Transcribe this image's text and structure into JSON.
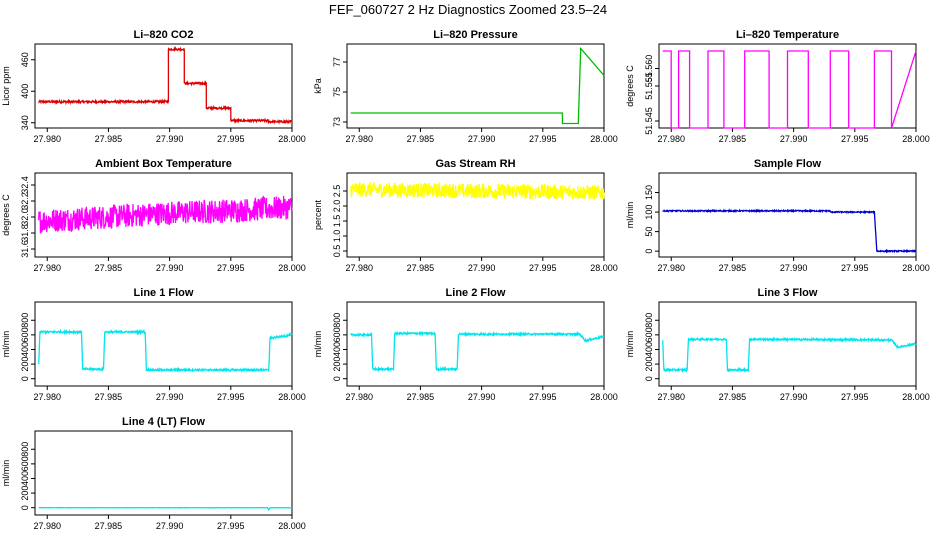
{
  "page": {
    "title": "FEF_060727  2 Hz Diagnostics Zoomed 23.5–24"
  },
  "chart_data": [
    {
      "type": "line",
      "title": "Li–820 CO2",
      "ylabel": "Licor ppm",
      "color": "#dd0000",
      "xlim": [
        27.979,
        28.0
      ],
      "ylim": [
        330,
        490
      ],
      "x_ticks": [
        27.98,
        27.985,
        27.99,
        27.995,
        28.0
      ],
      "x_tick_labels": [
        "27.980",
        "27.985",
        "27.990",
        "27.995",
        "28.000"
      ],
      "y_ticks": [
        340,
        400,
        460
      ],
      "y_tick_labels": [
        "340",
        "400",
        "460"
      ],
      "noise": 2,
      "series": [
        {
          "x": [
            27.9793,
            27.9899,
            27.9899,
            27.9912,
            27.9912,
            27.993,
            27.993,
            27.995,
            27.995,
            27.9981,
            27.9981,
            28.0
          ],
          "values": [
            380,
            380,
            480,
            480,
            415,
            415,
            368,
            368,
            344,
            344,
            342,
            342
          ]
        }
      ]
    },
    {
      "type": "line",
      "title": "Li–820 Pressure",
      "ylabel": "kPa",
      "color": "#00bb00",
      "xlim": [
        27.979,
        28.0
      ],
      "ylim": [
        72.6,
        78.2
      ],
      "x_ticks": [
        27.98,
        27.985,
        27.99,
        27.995,
        28.0
      ],
      "x_tick_labels": [
        "27.980",
        "27.985",
        "27.990",
        "27.995",
        "28.000"
      ],
      "y_ticks": [
        73,
        75,
        77
      ],
      "y_tick_labels": [
        "73",
        "75",
        "77"
      ],
      "noise": 0,
      "series": [
        {
          "x": [
            27.9793,
            27.9966,
            27.9966,
            27.9979,
            27.9981,
            28.0
          ],
          "values": [
            73.6,
            73.6,
            72.9,
            72.9,
            77.9,
            76.1
          ]
        }
      ]
    },
    {
      "type": "line",
      "title": "Li–820 Temperature",
      "ylabel": "degrees C",
      "color": "#ff00ff",
      "xlim": [
        27.979,
        28.0
      ],
      "ylim": [
        51.543,
        51.567
      ],
      "x_ticks": [
        27.98,
        27.985,
        27.99,
        27.995,
        28.0
      ],
      "x_tick_labels": [
        "27.980",
        "27.985",
        "27.990",
        "27.995",
        "28.000"
      ],
      "y_ticks": [
        51.545,
        51.555,
        51.56
      ],
      "y_tick_labels": [
        "51.545",
        "51.555",
        "51.560"
      ],
      "noise": 0,
      "series": [
        {
          "x": [
            27.9793,
            27.98,
            27.98,
            27.9806,
            27.9806,
            27.9815,
            27.9815,
            27.983,
            27.983,
            27.9843,
            27.9843,
            27.986,
            27.986,
            27.988,
            27.988,
            27.9895,
            27.9895,
            27.9912,
            27.9912,
            27.993,
            27.993,
            27.9945,
            27.9945,
            27.9966,
            27.9966,
            27.998,
            27.998,
            28.0
          ],
          "values": [
            51.565,
            51.565,
            51.543,
            51.543,
            51.565,
            51.565,
            51.543,
            51.543,
            51.565,
            51.565,
            51.543,
            51.543,
            51.565,
            51.565,
            51.543,
            51.543,
            51.565,
            51.565,
            51.543,
            51.543,
            51.565,
            51.565,
            51.543,
            51.543,
            51.565,
            51.565,
            51.543,
            51.565
          ]
        }
      ]
    },
    {
      "type": "line",
      "title": "Ambient Box Temperature",
      "ylabel": "degrees C",
      "color": "#ff00ff",
      "xlim": [
        27.979,
        28.0
      ],
      "ylim": [
        31.5,
        32.55
      ],
      "x_ticks": [
        27.98,
        27.985,
        27.99,
        27.995,
        28.0
      ],
      "x_tick_labels": [
        "27.980",
        "27.985",
        "27.990",
        "27.995",
        "28.000"
      ],
      "y_ticks": [
        31.6,
        31.8,
        32.0,
        32.2,
        32.4
      ],
      "y_tick_labels": [
        "31.6",
        "31.8",
        "32.0",
        "32.2",
        "32.4"
      ],
      "noise": 0.15,
      "series": [
        {
          "x": [
            27.9793,
            27.985,
            27.99,
            27.995,
            28.0
          ],
          "values": [
            31.95,
            32.0,
            32.05,
            32.08,
            32.12
          ]
        }
      ]
    },
    {
      "type": "line",
      "title": "Gas Stream RH",
      "ylabel": "percent",
      "color": "#ffff00",
      "xlim": [
        27.979,
        28.0
      ],
      "ylim": [
        0.3,
        3.1
      ],
      "x_ticks": [
        27.98,
        27.985,
        27.99,
        27.995,
        28.0
      ],
      "x_tick_labels": [
        "27.980",
        "27.985",
        "27.990",
        "27.995",
        "28.000"
      ],
      "y_ticks": [
        0.5,
        1.0,
        1.5,
        2.0,
        2.5
      ],
      "y_tick_labels": [
        "0.5",
        "1.0",
        "1.5",
        "2.0",
        "2.5"
      ],
      "noise": 0.25,
      "series": [
        {
          "x": [
            27.9793,
            27.99,
            28.0
          ],
          "values": [
            2.55,
            2.5,
            2.45
          ]
        }
      ]
    },
    {
      "type": "line",
      "title": "Sample Flow",
      "ylabel": "ml/min",
      "color": "#0000cc",
      "xlim": [
        27.979,
        28.0
      ],
      "ylim": [
        -15,
        200
      ],
      "x_ticks": [
        27.98,
        27.985,
        27.99,
        27.995,
        28.0
      ],
      "x_tick_labels": [
        "27.980",
        "27.985",
        "27.990",
        "27.995",
        "28.000"
      ],
      "y_ticks": [
        0,
        50,
        100,
        150
      ],
      "y_tick_labels": [
        "0",
        "50",
        "100",
        "150"
      ],
      "noise": 1.5,
      "series": [
        {
          "x": [
            27.9793,
            27.993,
            27.993,
            27.9966,
            27.9968,
            28.0
          ],
          "values": [
            103,
            103,
            100,
            100,
            0,
            0
          ]
        }
      ]
    },
    {
      "type": "line",
      "title": "Line 1 Flow",
      "ylabel": "ml/min",
      "color": "#00e5ee",
      "xlim": [
        27.979,
        28.0
      ],
      "ylim": [
        -100,
        1050
      ],
      "x_ticks": [
        27.98,
        27.985,
        27.99,
        27.995,
        28.0
      ],
      "x_tick_labels": [
        "27.980",
        "27.985",
        "27.990",
        "27.995",
        "28.000"
      ],
      "y_ticks": [
        0,
        200,
        400,
        600,
        800
      ],
      "y_tick_labels": [
        "0",
        "200",
        "400",
        "600",
        "800"
      ],
      "noise": 12,
      "series": [
        {
          "x": [
            27.9793,
            27.9794,
            27.9828,
            27.9829,
            27.9846,
            27.9847,
            27.988,
            27.9881,
            27.9981,
            27.9982,
            27.9985,
            28.0
          ],
          "values": [
            200,
            640,
            640,
            130,
            130,
            640,
            640,
            120,
            120,
            560,
            560,
            600
          ]
        }
      ]
    },
    {
      "type": "line",
      "title": "Line 2 Flow",
      "ylabel": "ml/min",
      "color": "#00e5ee",
      "xlim": [
        27.979,
        28.0
      ],
      "ylim": [
        -100,
        1050
      ],
      "x_ticks": [
        27.98,
        27.985,
        27.99,
        27.995,
        28.0
      ],
      "x_tick_labels": [
        "27.980",
        "27.985",
        "27.990",
        "27.995",
        "28.000"
      ],
      "y_ticks": [
        0,
        200,
        400,
        600,
        800
      ],
      "y_tick_labels": [
        "0",
        "200",
        "400",
        "600",
        "800"
      ],
      "noise": 12,
      "series": [
        {
          "x": [
            27.9793,
            27.981,
            27.9811,
            27.9828,
            27.9829,
            27.9862,
            27.9863,
            27.988,
            27.9881,
            27.998,
            27.9985,
            28.0
          ],
          "values": [
            600,
            600,
            130,
            130,
            620,
            620,
            130,
            130,
            610,
            610,
            520,
            580
          ]
        }
      ]
    },
    {
      "type": "line",
      "title": "Line 3 Flow",
      "ylabel": "ml/min",
      "color": "#00e5ee",
      "xlim": [
        27.979,
        28.0
      ],
      "ylim": [
        -100,
        1050
      ],
      "x_ticks": [
        27.98,
        27.985,
        27.99,
        27.995,
        28.0
      ],
      "x_tick_labels": [
        "27.980",
        "27.985",
        "27.990",
        "27.995",
        "28.000"
      ],
      "y_ticks": [
        0,
        200,
        400,
        600,
        800
      ],
      "y_tick_labels": [
        "0",
        "200",
        "400",
        "600",
        "800"
      ],
      "noise": 12,
      "series": [
        {
          "x": [
            27.9793,
            27.9794,
            27.9813,
            27.9814,
            27.9845,
            27.9846,
            27.9863,
            27.9864,
            27.998,
            27.9985,
            28.0
          ],
          "values": [
            520,
            120,
            120,
            540,
            540,
            120,
            120,
            540,
            530,
            430,
            480
          ]
        }
      ]
    },
    {
      "type": "line",
      "title": "Line 4 (LT) Flow",
      "ylabel": "ml/min",
      "color": "#00e5ee",
      "xlim": [
        27.979,
        28.0
      ],
      "ylim": [
        -100,
        1050
      ],
      "x_ticks": [
        27.98,
        27.985,
        27.99,
        27.995,
        28.0
      ],
      "x_tick_labels": [
        "27.980",
        "27.985",
        "27.990",
        "27.995",
        "28.000"
      ],
      "y_ticks": [
        0,
        200,
        400,
        600,
        800
      ],
      "y_tick_labels": [
        "0",
        "200",
        "400",
        "600",
        "800"
      ],
      "noise": 2,
      "series": [
        {
          "x": [
            27.9793,
            27.998,
            27.9981,
            27.9982,
            28.0
          ],
          "values": [
            0,
            0,
            -30,
            0,
            0
          ]
        }
      ]
    }
  ]
}
